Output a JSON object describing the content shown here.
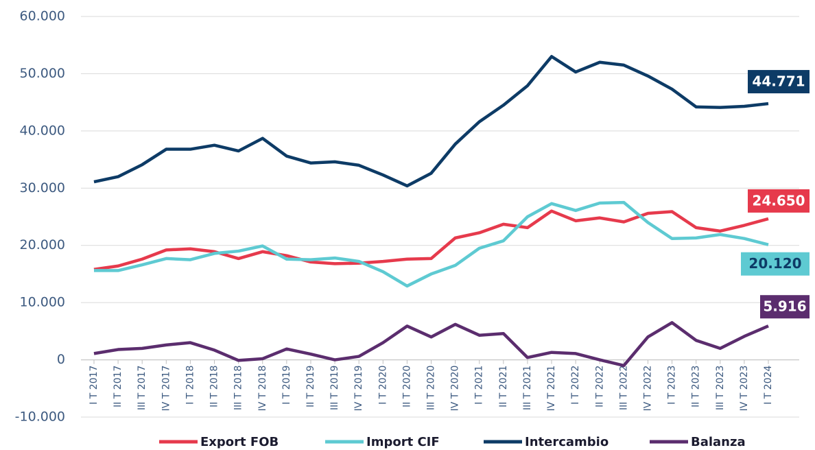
{
  "chart_data": {
    "type": "line",
    "categories": [
      "I T 2017",
      "II T 2017",
      "III T 2017",
      "IV T 2017",
      "I T 2018",
      "II T 2018",
      "III T 2018",
      "IV T 2018",
      "I T 2019",
      "II T 2019",
      "III T 2019",
      "IV T 2019",
      "I T 2020",
      "II T 2020",
      "III T 2020",
      "IV T 2020",
      "I T 2021",
      "II T 2021",
      "III T 2021",
      "IV T 2021",
      "I T 2022",
      "II T 2022",
      "III T 2022",
      "IV T 2022",
      "I T 2023",
      "II T 2023",
      "III T 2023",
      "IV T 2023",
      "I T 2024"
    ],
    "series": [
      {
        "name": "Export FOB",
        "color": "#e63a4c",
        "values": [
          15800,
          16400,
          17600,
          19200,
          19400,
          18900,
          17700,
          18900,
          18200,
          17100,
          16800,
          16900,
          17200,
          17600,
          17700,
          21300,
          22200,
          23700,
          23100,
          26000,
          24300,
          24800,
          24100,
          25600,
          25900,
          23100,
          22500,
          23500,
          24650
        ],
        "value_labels": [
          null,
          null,
          null,
          null,
          null,
          null,
          null,
          null,
          null,
          null,
          null,
          null,
          null,
          null,
          null,
          null,
          null,
          null,
          null,
          null,
          null,
          null,
          null,
          null,
          null,
          null,
          null,
          null,
          "24.650"
        ]
      },
      {
        "name": "Import CIF",
        "color": "#5ecad2",
        "values": [
          15600,
          15600,
          16600,
          17700,
          17500,
          18600,
          19000,
          19900,
          17600,
          17500,
          17800,
          17200,
          15400,
          12900,
          15000,
          16500,
          19500,
          20800,
          25000,
          27300,
          26100,
          27400,
          27500,
          24000,
          21200,
          21300,
          21900,
          21200,
          20120
        ],
        "value_labels": [
          null,
          null,
          null,
          null,
          null,
          null,
          null,
          null,
          null,
          null,
          null,
          null,
          null,
          null,
          null,
          null,
          null,
          null,
          null,
          null,
          null,
          null,
          null,
          null,
          null,
          null,
          null,
          null,
          "20.120"
        ]
      },
      {
        "name": "Intercambio",
        "color": "#0d3b66",
        "values": [
          31100,
          32000,
          34100,
          36800,
          36800,
          37500,
          36500,
          38700,
          35600,
          34400,
          34600,
          34000,
          32300,
          30400,
          32600,
          37700,
          41600,
          44500,
          47900,
          53000,
          50300,
          52000,
          51500,
          49600,
          47300,
          44200,
          44100,
          44300,
          44771
        ],
        "value_labels": [
          null,
          null,
          null,
          null,
          null,
          null,
          null,
          null,
          null,
          null,
          null,
          null,
          null,
          null,
          null,
          null,
          null,
          null,
          null,
          null,
          null,
          null,
          null,
          null,
          null,
          null,
          null,
          null,
          "44.771"
        ]
      },
      {
        "name": "Balanza",
        "color": "#5b2d6e",
        "values": [
          1100,
          1800,
          2000,
          2600,
          3000,
          1700,
          -100,
          200,
          1900,
          1000,
          0,
          600,
          3000,
          5900,
          4000,
          6200,
          4300,
          4600,
          400,
          1300,
          1100,
          0,
          -1000,
          4000,
          6500,
          3400,
          2000,
          4100,
          5916
        ],
        "value_labels": [
          null,
          null,
          null,
          null,
          null,
          null,
          null,
          null,
          null,
          null,
          null,
          null,
          null,
          null,
          null,
          null,
          null,
          null,
          null,
          null,
          null,
          null,
          null,
          null,
          null,
          null,
          null,
          null,
          "5.916"
        ]
      }
    ],
    "ylim": [
      -10000,
      60000
    ],
    "yticks": [
      {
        "value": -10000,
        "label": "-10.000"
      },
      0,
      {
        "value": 10000,
        "label": "10.000"
      },
      {
        "value": 20000,
        "label": "20.000"
      },
      {
        "value": 30000,
        "label": "30.000"
      },
      {
        "value": 40000,
        "label": "40.000"
      },
      {
        "value": 50000,
        "label": "50.000"
      },
      {
        "value": 60000,
        "label": "60.000"
      }
    ],
    "grid": true
  }
}
